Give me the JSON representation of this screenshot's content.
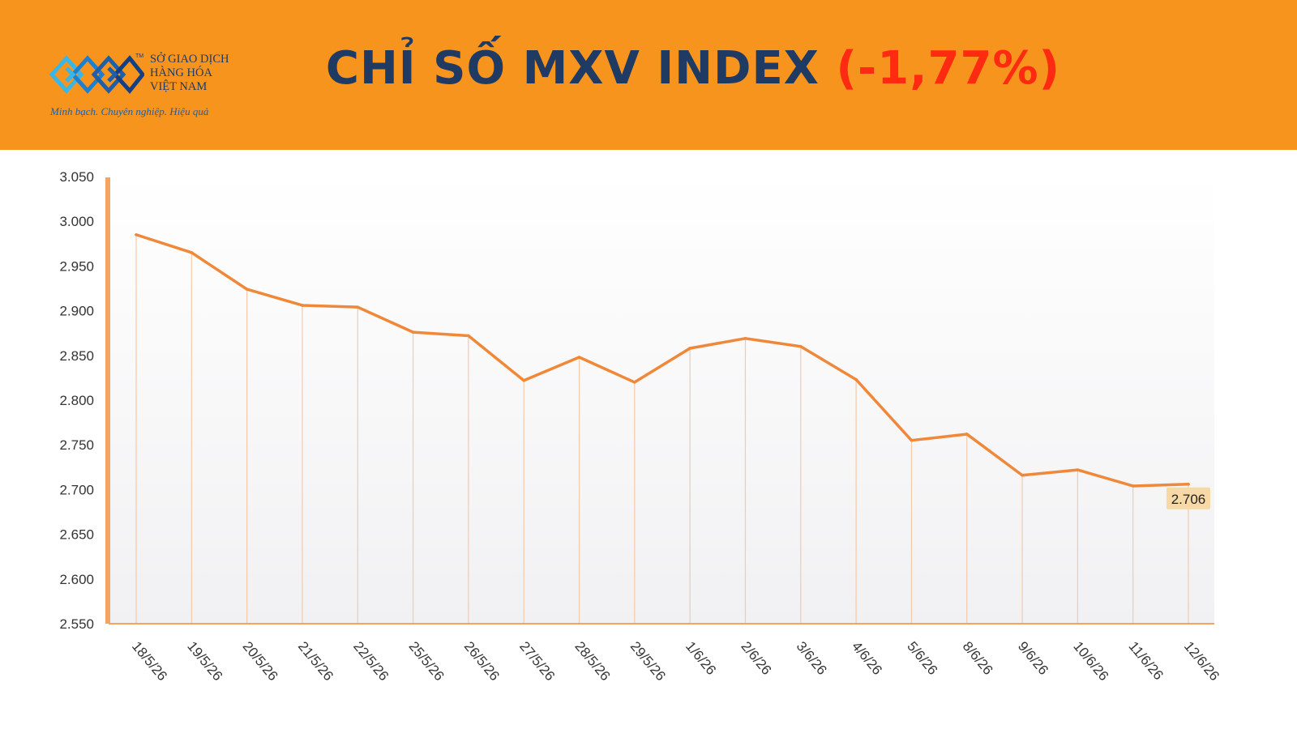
{
  "header": {
    "logo": {
      "tm": "TM",
      "line1": "SỞ GIAO DỊCH",
      "line2": "HÀNG HÓA",
      "line3": "VIỆT NAM",
      "slogan": "Minh bạch. Chuyên nghiệp. Hiệu quả",
      "icon": "mxv-logo-icon"
    },
    "title_main": "CHỈ SỐ MXV INDEX",
    "title_change": "(-1,77%)"
  },
  "colors": {
    "header_bg": "#f7941e",
    "title_text": "#1f3a63",
    "change_negative": "#ff2a12",
    "line": "#f0883a",
    "gridline": "#f6c9a8",
    "last_label_bg": "#f7d9a6",
    "axis": "#f4a460"
  },
  "chart_data": {
    "type": "line",
    "title": "CHỈ SỐ MXV INDEX",
    "categories": [
      "18/5/26",
      "19/5/26",
      "20/5/26",
      "21/5/26",
      "22/5/26",
      "25/5/26",
      "26/5/26",
      "27/5/26",
      "28/5/26",
      "29/5/26",
      "1/6/26",
      "2/6/26",
      "3/6/26",
      "4/6/26",
      "5/6/26",
      "8/6/26",
      "9/6/26",
      "10/6/26",
      "11/6/26",
      "12/6/26"
    ],
    "values": [
      2985,
      2965,
      2924,
      2906,
      2904,
      2876,
      2872,
      2822,
      2848,
      2820,
      2858,
      2869,
      2860,
      2823,
      2755,
      2762,
      2716,
      2722,
      2704,
      2706
    ],
    "y_ticks": [
      "3.050",
      "3.000",
      "2.950",
      "2.900",
      "2.850",
      "2.800",
      "2.750",
      "2.700",
      "2.650",
      "2.600",
      "2.550"
    ],
    "ylim": [
      2550,
      3050
    ],
    "xlabel": "",
    "ylabel": "",
    "last_value_label": "2.706",
    "grid": "vertical drop lines per point",
    "legend": "none"
  }
}
